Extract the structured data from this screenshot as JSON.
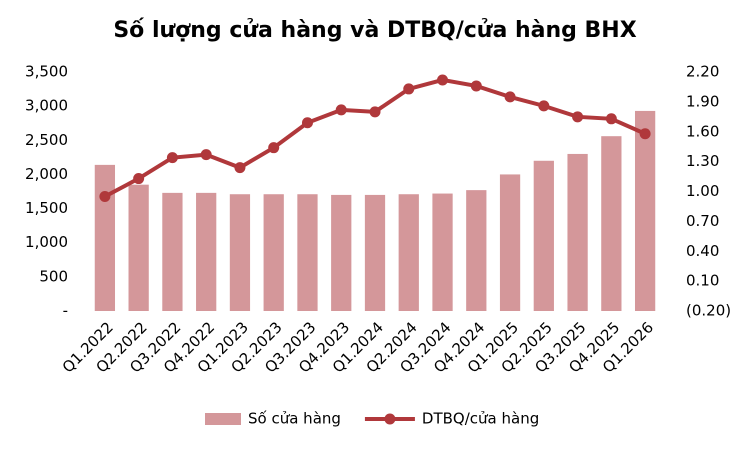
{
  "chart_data": {
    "type": "bar_line",
    "title": "Số lượng cửa hàng và DTBQ/cửa hàng BHX",
    "categories": [
      "Q1.2022",
      "Q2.2022",
      "Q3.2022",
      "Q4.2022",
      "Q1.2023",
      "Q2.2023",
      "Q3.2023",
      "Q4.2023",
      "Q1.2024",
      "Q2.2024",
      "Q3.2024",
      "Q4.2024",
      "Q1.2025",
      "Q2.2025",
      "Q3.2025",
      "Q4.2025",
      "Q1.2026"
    ],
    "series": [
      {
        "name": "Số cửa hàng",
        "type": "bar",
        "color": "#d4979a",
        "values": [
          2140,
          1850,
          1730,
          1730,
          1710,
          1710,
          1710,
          1700,
          1700,
          1710,
          1720,
          1770,
          2000,
          2200,
          2300,
          2560,
          2930
        ]
      },
      {
        "name": "DTBQ/cửa hàng",
        "type": "line",
        "axis": "y2",
        "color": "#b0383b",
        "values": [
          0.95,
          1.13,
          1.34,
          1.37,
          1.24,
          1.44,
          1.69,
          1.82,
          1.8,
          2.03,
          2.12,
          2.06,
          1.95,
          1.86,
          1.75,
          1.73,
          1.58
        ]
      }
    ],
    "ylim": [
      0,
      3500
    ],
    "yticks": [
      {
        "value": 0,
        "label": "-"
      },
      500,
      {
        "value": 1000,
        "label": "1,000"
      },
      {
        "value": 1500,
        "label": "1,500"
      },
      {
        "value": 2000,
        "label": "2,000"
      },
      {
        "value": 2500,
        "label": "2,500"
      },
      {
        "value": 3000,
        "label": "3,000"
      },
      {
        "value": 3500,
        "label": "3,500"
      }
    ],
    "y2lim": [
      -0.2,
      2.2
    ],
    "y2ticks": [
      {
        "value": -0.2,
        "label": "(0.20)"
      },
      {
        "value": 0.1,
        "label": "0.10"
      },
      {
        "value": 0.4,
        "label": "0.40"
      },
      {
        "value": 0.7,
        "label": "0.70"
      },
      {
        "value": 1.0,
        "label": "1.00"
      },
      {
        "value": 1.3,
        "label": "1.30"
      },
      {
        "value": 1.6,
        "label": "1.60"
      },
      {
        "value": 1.9,
        "label": "1.90"
      },
      {
        "value": 2.2,
        "label": "2.20"
      }
    ],
    "grid": false,
    "legend": "bottom"
  }
}
